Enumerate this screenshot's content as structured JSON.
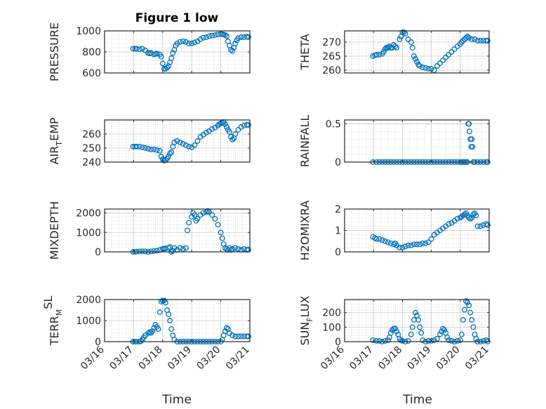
{
  "figure": {
    "title": "Figure 1 low",
    "x_axis_label": "Time",
    "x_tick_labels": [
      "03/16",
      "03/17",
      "03/18",
      "03/19",
      "03/20",
      "03/21"
    ],
    "marker_color": "#0072BD",
    "axis_color": "#262626",
    "grid_color": "#c8c8c8"
  },
  "chart_data": [
    {
      "type": "scatter",
      "ylabel": "PRESSURE",
      "ylabel_sub": null,
      "xlim": [
        0,
        5
      ],
      "ylim": [
        600,
        1000
      ],
      "yticks": [
        600,
        800,
        1000
      ],
      "grid": true,
      "x": [
        0.98,
        1.05,
        1.1,
        1.2,
        1.3,
        1.4,
        1.5,
        1.55,
        1.6,
        1.7,
        1.75,
        1.8,
        1.9,
        1.95,
        2.0,
        2.05,
        2.1,
        2.15,
        2.2,
        2.25,
        2.3,
        2.35,
        2.4,
        2.45,
        2.5,
        2.6,
        2.7,
        2.8,
        2.9,
        3.0,
        3.1,
        3.2,
        3.3,
        3.4,
        3.5,
        3.6,
        3.7,
        3.8,
        3.9,
        4.0,
        4.05,
        4.1,
        4.15,
        4.2,
        4.25,
        4.3,
        4.35,
        4.4,
        4.45,
        4.5,
        4.55,
        4.6,
        4.7,
        4.8,
        4.9,
        4.95
      ],
      "y": [
        830,
        830,
        830,
        825,
        830,
        815,
        790,
        785,
        790,
        775,
        780,
        785,
        775,
        755,
        690,
        640,
        640,
        650,
        665,
        700,
        740,
        790,
        820,
        860,
        880,
        895,
        900,
        895,
        880,
        880,
        890,
        900,
        920,
        935,
        940,
        950,
        955,
        960,
        965,
        970,
        968,
        965,
        960,
        950,
        900,
        860,
        820,
        810,
        840,
        880,
        910,
        930,
        940,
        940,
        945,
        940
      ]
    },
    {
      "type": "scatter",
      "ylabel": "THETA",
      "ylabel_sub": null,
      "xlim": [
        0,
        5
      ],
      "ylim": [
        259,
        274
      ],
      "yticks": [
        260,
        265,
        270
      ],
      "grid": true,
      "x": [
        0.98,
        1.05,
        1.1,
        1.2,
        1.3,
        1.35,
        1.4,
        1.45,
        1.5,
        1.55,
        1.6,
        1.65,
        1.7,
        1.75,
        1.8,
        1.9,
        1.95,
        2.0,
        2.05,
        2.1,
        2.2,
        2.3,
        2.35,
        2.4,
        2.45,
        2.5,
        2.55,
        2.6,
        2.7,
        2.8,
        2.9,
        3.0,
        3.1,
        3.2,
        3.3,
        3.4,
        3.5,
        3.6,
        3.7,
        3.8,
        3.9,
        4.0,
        4.05,
        4.1,
        4.15,
        4.2,
        4.25,
        4.3,
        4.4,
        4.5,
        4.6,
        4.7,
        4.8,
        4.9,
        4.95
      ],
      "y": [
        265,
        265.3,
        265.5,
        265.5,
        265.8,
        266.5,
        267.5,
        268,
        268,
        268.5,
        268,
        268,
        269,
        268.5,
        268,
        271,
        272,
        273.5,
        273.5,
        273,
        271,
        270,
        268,
        265,
        264,
        263,
        262,
        261.5,
        261,
        260.8,
        260.5,
        260.5,
        260,
        261.5,
        262.5,
        263.5,
        264.5,
        265.5,
        266.5,
        267.5,
        268.5,
        269.3,
        270,
        270.5,
        271,
        271.5,
        272,
        271.5,
        271,
        271,
        270.5,
        270.5,
        270.5,
        270.5,
        270.5
      ]
    },
    {
      "type": "scatter",
      "ylabel": "AIR",
      "ylabel_sub": "T",
      "ylabel_tail": "EMP",
      "xlim": [
        0,
        5
      ],
      "ylim": [
        240,
        270
      ],
      "yticks": [
        240,
        250,
        260
      ],
      "grid": true,
      "x": [
        0.98,
        1.05,
        1.1,
        1.2,
        1.3,
        1.4,
        1.5,
        1.6,
        1.7,
        1.8,
        1.9,
        1.95,
        2.0,
        2.05,
        2.1,
        2.15,
        2.2,
        2.25,
        2.3,
        2.35,
        2.4,
        2.5,
        2.6,
        2.7,
        2.8,
        2.9,
        3.0,
        3.1,
        3.2,
        3.3,
        3.4,
        3.5,
        3.6,
        3.7,
        3.8,
        3.9,
        3.95,
        4.0,
        4.05,
        4.1,
        4.15,
        4.2,
        4.25,
        4.3,
        4.35,
        4.4,
        4.45,
        4.5,
        4.6,
        4.7,
        4.8,
        4.9,
        4.95
      ],
      "y": [
        251,
        251,
        251,
        251,
        250.5,
        250,
        249.5,
        249,
        249,
        248.5,
        248,
        244,
        242,
        241,
        241.5,
        242.5,
        244,
        246,
        247,
        251,
        254,
        255,
        254,
        253,
        252,
        251,
        250.5,
        252,
        255,
        258,
        259.5,
        261,
        262,
        263.5,
        264.5,
        266,
        267,
        267.5,
        268,
        268.5,
        267,
        265,
        263,
        261.5,
        258,
        256,
        257,
        260,
        263,
        265,
        266,
        266.5,
        266.5
      ]
    },
    {
      "type": "scatter",
      "ylabel": "RAINFALL",
      "ylabel_sub": null,
      "xlim": [
        0,
        5
      ],
      "ylim": [
        0,
        0.55
      ],
      "yticks": [
        0,
        0.5
      ],
      "grid": true,
      "x": [
        0.98,
        1.1,
        1.2,
        1.3,
        1.4,
        1.5,
        1.6,
        1.7,
        1.8,
        1.9,
        2.0,
        2.1,
        2.2,
        2.3,
        2.4,
        2.5,
        2.6,
        2.7,
        2.8,
        2.9,
        3.0,
        3.1,
        3.2,
        3.3,
        3.4,
        3.5,
        3.6,
        3.7,
        3.8,
        3.9,
        4.0,
        4.05,
        4.1,
        4.15,
        4.2,
        4.25,
        4.28,
        4.3,
        4.32,
        4.35,
        4.38,
        4.4,
        4.42,
        4.45,
        4.5,
        4.6,
        4.7,
        4.8,
        4.9,
        4.95
      ],
      "y": [
        0,
        0,
        0,
        0,
        0,
        0,
        0,
        0,
        0,
        0,
        0,
        0,
        0,
        0,
        0,
        0,
        0,
        0,
        0,
        0,
        0,
        0,
        0,
        0,
        0,
        0,
        0,
        0,
        0,
        0,
        0,
        0,
        0,
        0,
        0,
        0,
        0.5,
        0.5,
        0.4,
        0.3,
        0.2,
        0.3,
        0.2,
        0,
        0,
        0,
        0,
        0,
        0,
        0
      ]
    },
    {
      "type": "scatter",
      "ylabel": "MIXDEPTH",
      "ylabel_sub": null,
      "xlim": [
        0,
        5
      ],
      "ylim": [
        0,
        2200
      ],
      "yticks": [
        0,
        1000,
        2000
      ],
      "grid": true,
      "x": [
        0.98,
        1.05,
        1.1,
        1.2,
        1.3,
        1.4,
        1.5,
        1.6,
        1.7,
        1.8,
        1.9,
        2.0,
        2.05,
        2.1,
        2.2,
        2.25,
        2.3,
        2.35,
        2.4,
        2.5,
        2.6,
        2.7,
        2.8,
        2.85,
        2.9,
        3.0,
        3.05,
        3.1,
        3.15,
        3.2,
        3.3,
        3.4,
        3.5,
        3.55,
        3.6,
        3.7,
        3.8,
        3.9,
        4.0,
        4.05,
        4.1,
        4.15,
        4.2,
        4.25,
        4.3,
        4.35,
        4.4,
        4.5,
        4.6,
        4.7,
        4.8,
        4.9,
        4.95
      ],
      "y": [
        0,
        0,
        10,
        20,
        30,
        20,
        0,
        20,
        40,
        60,
        100,
        150,
        160,
        180,
        200,
        250,
        0,
        50,
        200,
        100,
        200,
        150,
        200,
        1100,
        1500,
        1800,
        2000,
        1900,
        1600,
        1700,
        1900,
        2000,
        2050,
        2100,
        2050,
        1900,
        1700,
        1400,
        1000,
        700,
        400,
        200,
        150,
        100,
        200,
        100,
        150,
        200,
        150,
        100,
        150,
        100,
        120
      ]
    },
    {
      "type": "scatter",
      "ylabel": "H2OMIXRA",
      "ylabel_sub": null,
      "xlim": [
        0,
        5
      ],
      "ylim": [
        0,
        2
      ],
      "yticks": [
        0,
        1,
        2
      ],
      "grid": true,
      "x": [
        0.98,
        1.05,
        1.1,
        1.2,
        1.3,
        1.4,
        1.5,
        1.6,
        1.7,
        1.75,
        1.8,
        1.9,
        2.0,
        2.1,
        2.2,
        2.3,
        2.4,
        2.5,
        2.6,
        2.7,
        2.8,
        2.9,
        3.0,
        3.1,
        3.2,
        3.3,
        3.4,
        3.5,
        3.6,
        3.7,
        3.8,
        3.9,
        4.0,
        4.05,
        4.1,
        4.15,
        4.2,
        4.25,
        4.3,
        4.35,
        4.4,
        4.45,
        4.5,
        4.55,
        4.6,
        4.7,
        4.8,
        4.9,
        4.95
      ],
      "y": [
        0.7,
        0.65,
        0.6,
        0.6,
        0.55,
        0.5,
        0.45,
        0.4,
        0.35,
        0.4,
        0.3,
        0.2,
        0.2,
        0.25,
        0.3,
        0.3,
        0.35,
        0.35,
        0.35,
        0.4,
        0.4,
        0.45,
        0.6,
        0.8,
        0.9,
        1.0,
        1.1,
        1.2,
        1.3,
        1.35,
        1.45,
        1.55,
        1.6,
        1.65,
        1.7,
        1.75,
        1.8,
        1.7,
        1.6,
        1.55,
        1.6,
        1.75,
        1.8,
        1.7,
        1.2,
        1.2,
        1.25,
        1.3,
        1.25
      ]
    },
    {
      "type": "scatter",
      "ylabel": "TERR",
      "ylabel_sub": "M",
      "ylabel_sup": "SL",
      "xlim": [
        0,
        5
      ],
      "ylim": [
        0,
        2000
      ],
      "yticks": [
        0,
        1000,
        2000
      ],
      "grid": true,
      "x": [
        0.98,
        1.05,
        1.1,
        1.2,
        1.25,
        1.3,
        1.35,
        1.4,
        1.5,
        1.55,
        1.6,
        1.65,
        1.7,
        1.75,
        1.8,
        1.85,
        1.9,
        1.95,
        2.0,
        2.05,
        2.1,
        2.15,
        2.2,
        2.25,
        2.3,
        2.35,
        2.4,
        2.5,
        2.6,
        2.7,
        2.8,
        2.9,
        3.0,
        3.1,
        3.2,
        3.3,
        3.4,
        3.5,
        3.6,
        3.7,
        3.8,
        3.9,
        4.0,
        4.05,
        4.1,
        4.15,
        4.2,
        4.25,
        4.3,
        4.4,
        4.5,
        4.6,
        4.7,
        4.8,
        4.9,
        4.95
      ],
      "y": [
        0,
        0,
        0,
        0,
        20,
        100,
        200,
        300,
        400,
        450,
        420,
        500,
        650,
        800,
        700,
        600,
        1400,
        1900,
        1950,
        1950,
        1850,
        1500,
        1300,
        1000,
        600,
        300,
        100,
        0,
        0,
        0,
        0,
        0,
        0,
        0,
        0,
        0,
        0,
        0,
        0,
        0,
        0,
        0,
        0,
        100,
        300,
        500,
        650,
        600,
        400,
        300,
        250,
        250,
        250,
        250,
        250,
        250
      ]
    },
    {
      "type": "scatter",
      "ylabel": "SUN",
      "ylabel_sub": "F",
      "ylabel_tail": "LUX",
      "xlim": [
        0,
        5
      ],
      "ylim": [
        0,
        290
      ],
      "yticks": [
        0,
        100,
        200
      ],
      "grid": true,
      "x": [
        0.98,
        1.1,
        1.2,
        1.3,
        1.4,
        1.5,
        1.55,
        1.6,
        1.65,
        1.7,
        1.75,
        1.8,
        1.85,
        1.9,
        1.95,
        2.0,
        2.1,
        2.2,
        2.3,
        2.35,
        2.4,
        2.45,
        2.5,
        2.55,
        2.6,
        2.65,
        2.7,
        2.8,
        2.9,
        3.0,
        3.1,
        3.2,
        3.3,
        3.35,
        3.4,
        3.45,
        3.5,
        3.55,
        3.6,
        3.7,
        3.8,
        3.9,
        4.0,
        4.05,
        4.1,
        4.15,
        4.2,
        4.25,
        4.3,
        4.35,
        4.4,
        4.45,
        4.5,
        4.55,
        4.6,
        4.7,
        4.8,
        4.9,
        4.95
      ],
      "y": [
        10,
        5,
        5,
        0,
        5,
        10,
        30,
        60,
        80,
        90,
        90,
        70,
        50,
        20,
        10,
        5,
        0,
        5,
        50,
        100,
        150,
        200,
        180,
        150,
        100,
        60,
        10,
        0,
        5,
        5,
        10,
        20,
        50,
        70,
        90,
        80,
        60,
        30,
        10,
        5,
        0,
        5,
        10,
        50,
        150,
        220,
        280,
        270,
        250,
        200,
        150,
        100,
        50,
        20,
        0,
        0,
        5,
        10,
        0
      ]
    }
  ]
}
